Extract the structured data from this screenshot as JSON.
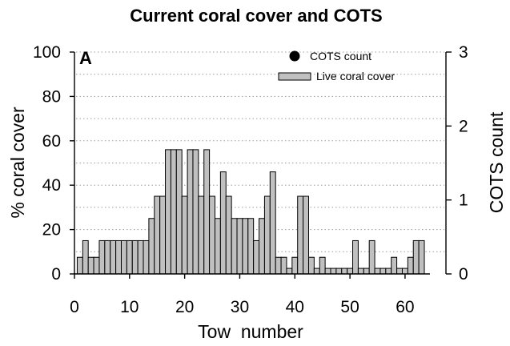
{
  "chart_data": {
    "type": "bar",
    "title": "Current coral cover and COTS",
    "panel_label": "A",
    "xlabel": "Tow  number",
    "ylabel": "% coral cover",
    "y2label": "COTS count",
    "xlim": [
      0,
      63.5
    ],
    "ylim": [
      0,
      100
    ],
    "y2lim": [
      0,
      3
    ],
    "x_ticks": [
      0,
      10,
      20,
      30,
      40,
      50,
      60
    ],
    "y_ticks": [
      0,
      20,
      40,
      60,
      80,
      100
    ],
    "y2_ticks": [
      0,
      1,
      2,
      3
    ],
    "grid": "horizontal dotted",
    "legend_position": "top-right",
    "legend": [
      {
        "label": "COTS count",
        "marker": "filled-circle"
      },
      {
        "label": "Live coral cover",
        "marker": "grey-box"
      }
    ],
    "series": [
      {
        "name": "Live coral cover",
        "axis": "left",
        "color": "#c0c0c0",
        "x": [
          1,
          2,
          3,
          4,
          5,
          6,
          7,
          8,
          9,
          10,
          11,
          12,
          13,
          14,
          15,
          16,
          17,
          18,
          19,
          20,
          21,
          22,
          23,
          24,
          25,
          26,
          27,
          28,
          29,
          30,
          31,
          32,
          33,
          34,
          35,
          36,
          37,
          38,
          39,
          40,
          41,
          42,
          43,
          44,
          45,
          46,
          47,
          48,
          49,
          50,
          51,
          52,
          53,
          54,
          55,
          56,
          57,
          58,
          59,
          60,
          61,
          62,
          63
        ],
        "values": [
          7.5,
          15,
          7.5,
          7.5,
          15,
          15,
          15,
          15,
          15,
          15,
          15,
          15,
          15,
          25,
          35,
          35,
          56,
          56,
          56,
          35,
          56,
          56,
          35,
          56,
          35,
          25,
          46,
          35,
          25,
          25,
          25,
          25,
          15,
          25,
          35,
          46,
          7.5,
          7.5,
          2.5,
          7.5,
          35,
          35,
          7.5,
          2.5,
          7.5,
          2.5,
          2.5,
          2.5,
          2.5,
          2.5,
          15,
          2.5,
          2.5,
          15,
          2.5,
          2.5,
          2.5,
          7.5,
          2.5,
          2.5,
          7.5,
          15,
          15
        ]
      },
      {
        "name": "COTS count",
        "axis": "right",
        "color": "#000000",
        "x": [],
        "values": []
      }
    ]
  }
}
